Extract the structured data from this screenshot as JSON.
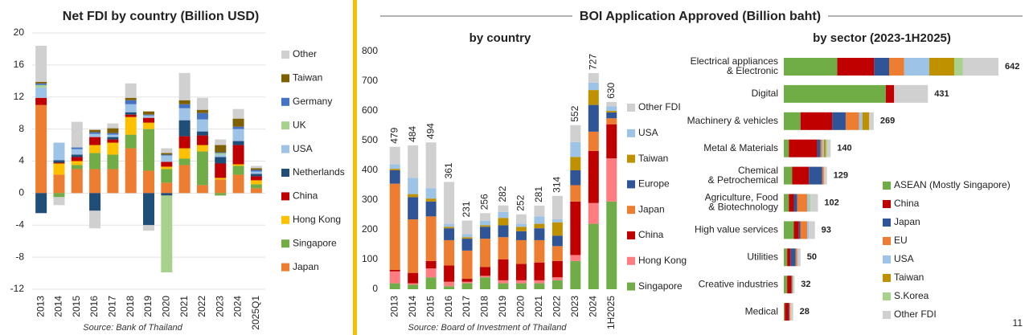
{
  "section_title": "BOI Application Approved (Billion baht)",
  "page_number": "11",
  "chart_data": [
    {
      "type": "bar",
      "title": "Net FDI by country (Billion USD)",
      "source": "Source: Bank of Thailand",
      "categories": [
        "2013",
        "2014",
        "2015",
        "2016",
        "2017",
        "2018",
        "2019",
        "2020",
        "2021",
        "2022",
        "2023",
        "2024",
        "2025Q1"
      ],
      "ylim": [
        -12,
        20
      ],
      "yticks": [
        -12,
        -8,
        -4,
        0,
        4,
        8,
        12,
        16,
        20
      ],
      "grid": true,
      "legend": "right",
      "series": [
        {
          "name": "Japan",
          "color": "#ED7D31",
          "values": [
            11,
            2.3,
            3,
            3,
            3,
            5.6,
            2.8,
            1.3,
            3.5,
            1,
            1.7,
            2.3,
            0.6
          ]
        },
        {
          "name": "Singapore",
          "color": "#70AD47",
          "values": [
            0,
            -0.5,
            0.5,
            2,
            1.8,
            1.7,
            5.2,
            1.7,
            0.8,
            4.2,
            -0.3,
            1.1,
            0.5
          ]
        },
        {
          "name": "Hong Kong",
          "color": "#FFC000",
          "values": [
            0,
            1.4,
            0.5,
            1,
            1.5,
            2.2,
            0.8,
            0.3,
            1.3,
            0.8,
            0.2,
            0.2,
            0.5
          ]
        },
        {
          "name": "China",
          "color": "#C00000",
          "values": [
            0.9,
            0.1,
            0.5,
            1,
            0.4,
            0.3,
            0.6,
            0.6,
            1.5,
            1.2,
            1.8,
            2.4,
            0.5
          ]
        },
        {
          "name": "Netherlands",
          "color": "#1F4E79",
          "values": [
            -2.5,
            0.3,
            0.3,
            -2.2,
            0.3,
            0.3,
            -4,
            -0.3,
            2,
            0.5,
            0.8,
            0.5,
            0.3
          ]
        },
        {
          "name": "USA",
          "color": "#9DC3E6",
          "values": [
            1.3,
            2.2,
            0.7,
            0.4,
            0.3,
            1,
            0.3,
            0.8,
            1.5,
            1.5,
            0.3,
            1.5,
            0.3
          ]
        },
        {
          "name": "UK",
          "color": "#A9D18E",
          "values": [
            0.3,
            0,
            0,
            0,
            0,
            0,
            0,
            -9.6,
            0,
            0,
            0.2,
            0,
            0
          ]
        },
        {
          "name": "Germany",
          "color": "#4472C4",
          "values": [
            0.2,
            0,
            0.2,
            0.2,
            0.2,
            0.5,
            0.1,
            0.1,
            0.5,
            0.8,
            0.1,
            0.3,
            0.2
          ]
        },
        {
          "name": "Taiwan",
          "color": "#7F6000",
          "values": [
            0.2,
            0,
            0,
            0.3,
            0.6,
            0.3,
            0.4,
            0.2,
            0.5,
            0.4,
            0.9,
            1,
            0.2
          ]
        },
        {
          "name": "Other",
          "color": "#D0D0D0",
          "values": [
            4.5,
            -1,
            3.2,
            -2.2,
            0.6,
            1.8,
            -0.7,
            0.6,
            3.4,
            1.5,
            0.7,
            1.2,
            0.3
          ]
        }
      ]
    },
    {
      "type": "bar",
      "title": "by country",
      "source": "Source: Board of Investment of Thailand",
      "categories": [
        "2013",
        "2014",
        "2015",
        "2016",
        "2017",
        "2018",
        "2019",
        "2020",
        "2021",
        "2022",
        "2023",
        "2024",
        "1H2025"
      ],
      "ylim": [
        0,
        800
      ],
      "yticks": [
        0,
        100,
        200,
        300,
        400,
        500,
        600,
        700,
        800
      ],
      "grid": false,
      "legend": "right",
      "totals": [
        479,
        484,
        494,
        361,
        231,
        256,
        282,
        252,
        281,
        314,
        552,
        727,
        630
      ],
      "series": [
        {
          "name": "Singapore",
          "color": "#70AD47",
          "values": [
            20,
            15,
            40,
            10,
            20,
            40,
            20,
            20,
            20,
            30,
            95,
            220,
            295
          ]
        },
        {
          "name": "Hong Kong",
          "color": "#FF7C80",
          "values": [
            40,
            5,
            30,
            15,
            5,
            5,
            10,
            10,
            10,
            10,
            20,
            70,
            145
          ]
        },
        {
          "name": "China",
          "color": "#C00000",
          "values": [
            5,
            35,
            25,
            55,
            10,
            30,
            70,
            55,
            60,
            55,
            180,
            175,
            115
          ]
        },
        {
          "name": "Japan",
          "color": "#ED7D31",
          "values": [
            290,
            180,
            150,
            85,
            95,
            95,
            75,
            80,
            75,
            50,
            55,
            65,
            20
          ]
        },
        {
          "name": "Europe",
          "color": "#2F5597",
          "values": [
            45,
            75,
            50,
            40,
            40,
            40,
            40,
            30,
            40,
            35,
            50,
            90,
            20
          ]
        },
        {
          "name": "Taiwan",
          "color": "#BF9000",
          "values": [
            5,
            10,
            10,
            5,
            5,
            5,
            25,
            15,
            15,
            45,
            45,
            50,
            5
          ]
        },
        {
          "name": "USA",
          "color": "#9DC3E6",
          "values": [
            15,
            55,
            35,
            10,
            10,
            15,
            20,
            10,
            25,
            10,
            50,
            25,
            15
          ]
        },
        {
          "name": "Other FDI",
          "color": "#D0D0D0",
          "values": [
            59,
            109,
            154,
            141,
            46,
            26,
            22,
            32,
            36,
            79,
            57,
            32,
            15
          ]
        }
      ]
    },
    {
      "type": "hbar",
      "title": "by sector (2023-1H2025)",
      "legend": "lower right",
      "categories": [
        [
          "Electrical appliances",
          "& Electronic"
        ],
        [
          "Digital"
        ],
        [
          "Machinery & vehicles"
        ],
        [
          "Metal & Materials"
        ],
        [
          "Chemical",
          "& Petrochemical"
        ],
        [
          "Agriculture, Food",
          "& Biotechnology"
        ],
        [
          "High value services"
        ],
        [
          "Utilities"
        ],
        [
          "Creative industries"
        ],
        [
          "Medical"
        ]
      ],
      "totals": [
        642,
        431,
        269,
        140,
        129,
        102,
        93,
        50,
        32,
        28
      ],
      "series": [
        {
          "name": "ASEAN (Mostly Singapore)",
          "color": "#70AD47",
          "values": [
            160,
            305,
            50,
            15,
            25,
            15,
            30,
            10,
            10,
            3
          ]
        },
        {
          "name": "China",
          "color": "#C00000",
          "values": [
            110,
            25,
            95,
            85,
            50,
            15,
            15,
            10,
            12,
            12
          ]
        },
        {
          "name": "Japan",
          "color": "#2F5597",
          "values": [
            45,
            0,
            40,
            10,
            40,
            10,
            5,
            15,
            2,
            2
          ]
        },
        {
          "name": "EU",
          "color": "#ED7D31",
          "values": [
            45,
            0,
            40,
            5,
            5,
            30,
            20,
            5,
            3,
            3
          ]
        },
        {
          "name": "USA",
          "color": "#9DC3E6",
          "values": [
            75,
            0,
            10,
            5,
            0,
            5,
            5,
            2,
            0,
            0
          ]
        },
        {
          "name": "Taiwan",
          "color": "#BF9000",
          "values": [
            75,
            0,
            20,
            5,
            0,
            0,
            0,
            0,
            0,
            0
          ]
        },
        {
          "name": "S.Korea",
          "color": "#A9D18E",
          "values": [
            25,
            0,
            0,
            5,
            0,
            5,
            0,
            0,
            0,
            0
          ]
        },
        {
          "name": "Other FDI",
          "color": "#D0D0D0",
          "values": [
            107,
            101,
            14,
            10,
            9,
            22,
            18,
            8,
            5,
            8
          ]
        }
      ]
    }
  ]
}
